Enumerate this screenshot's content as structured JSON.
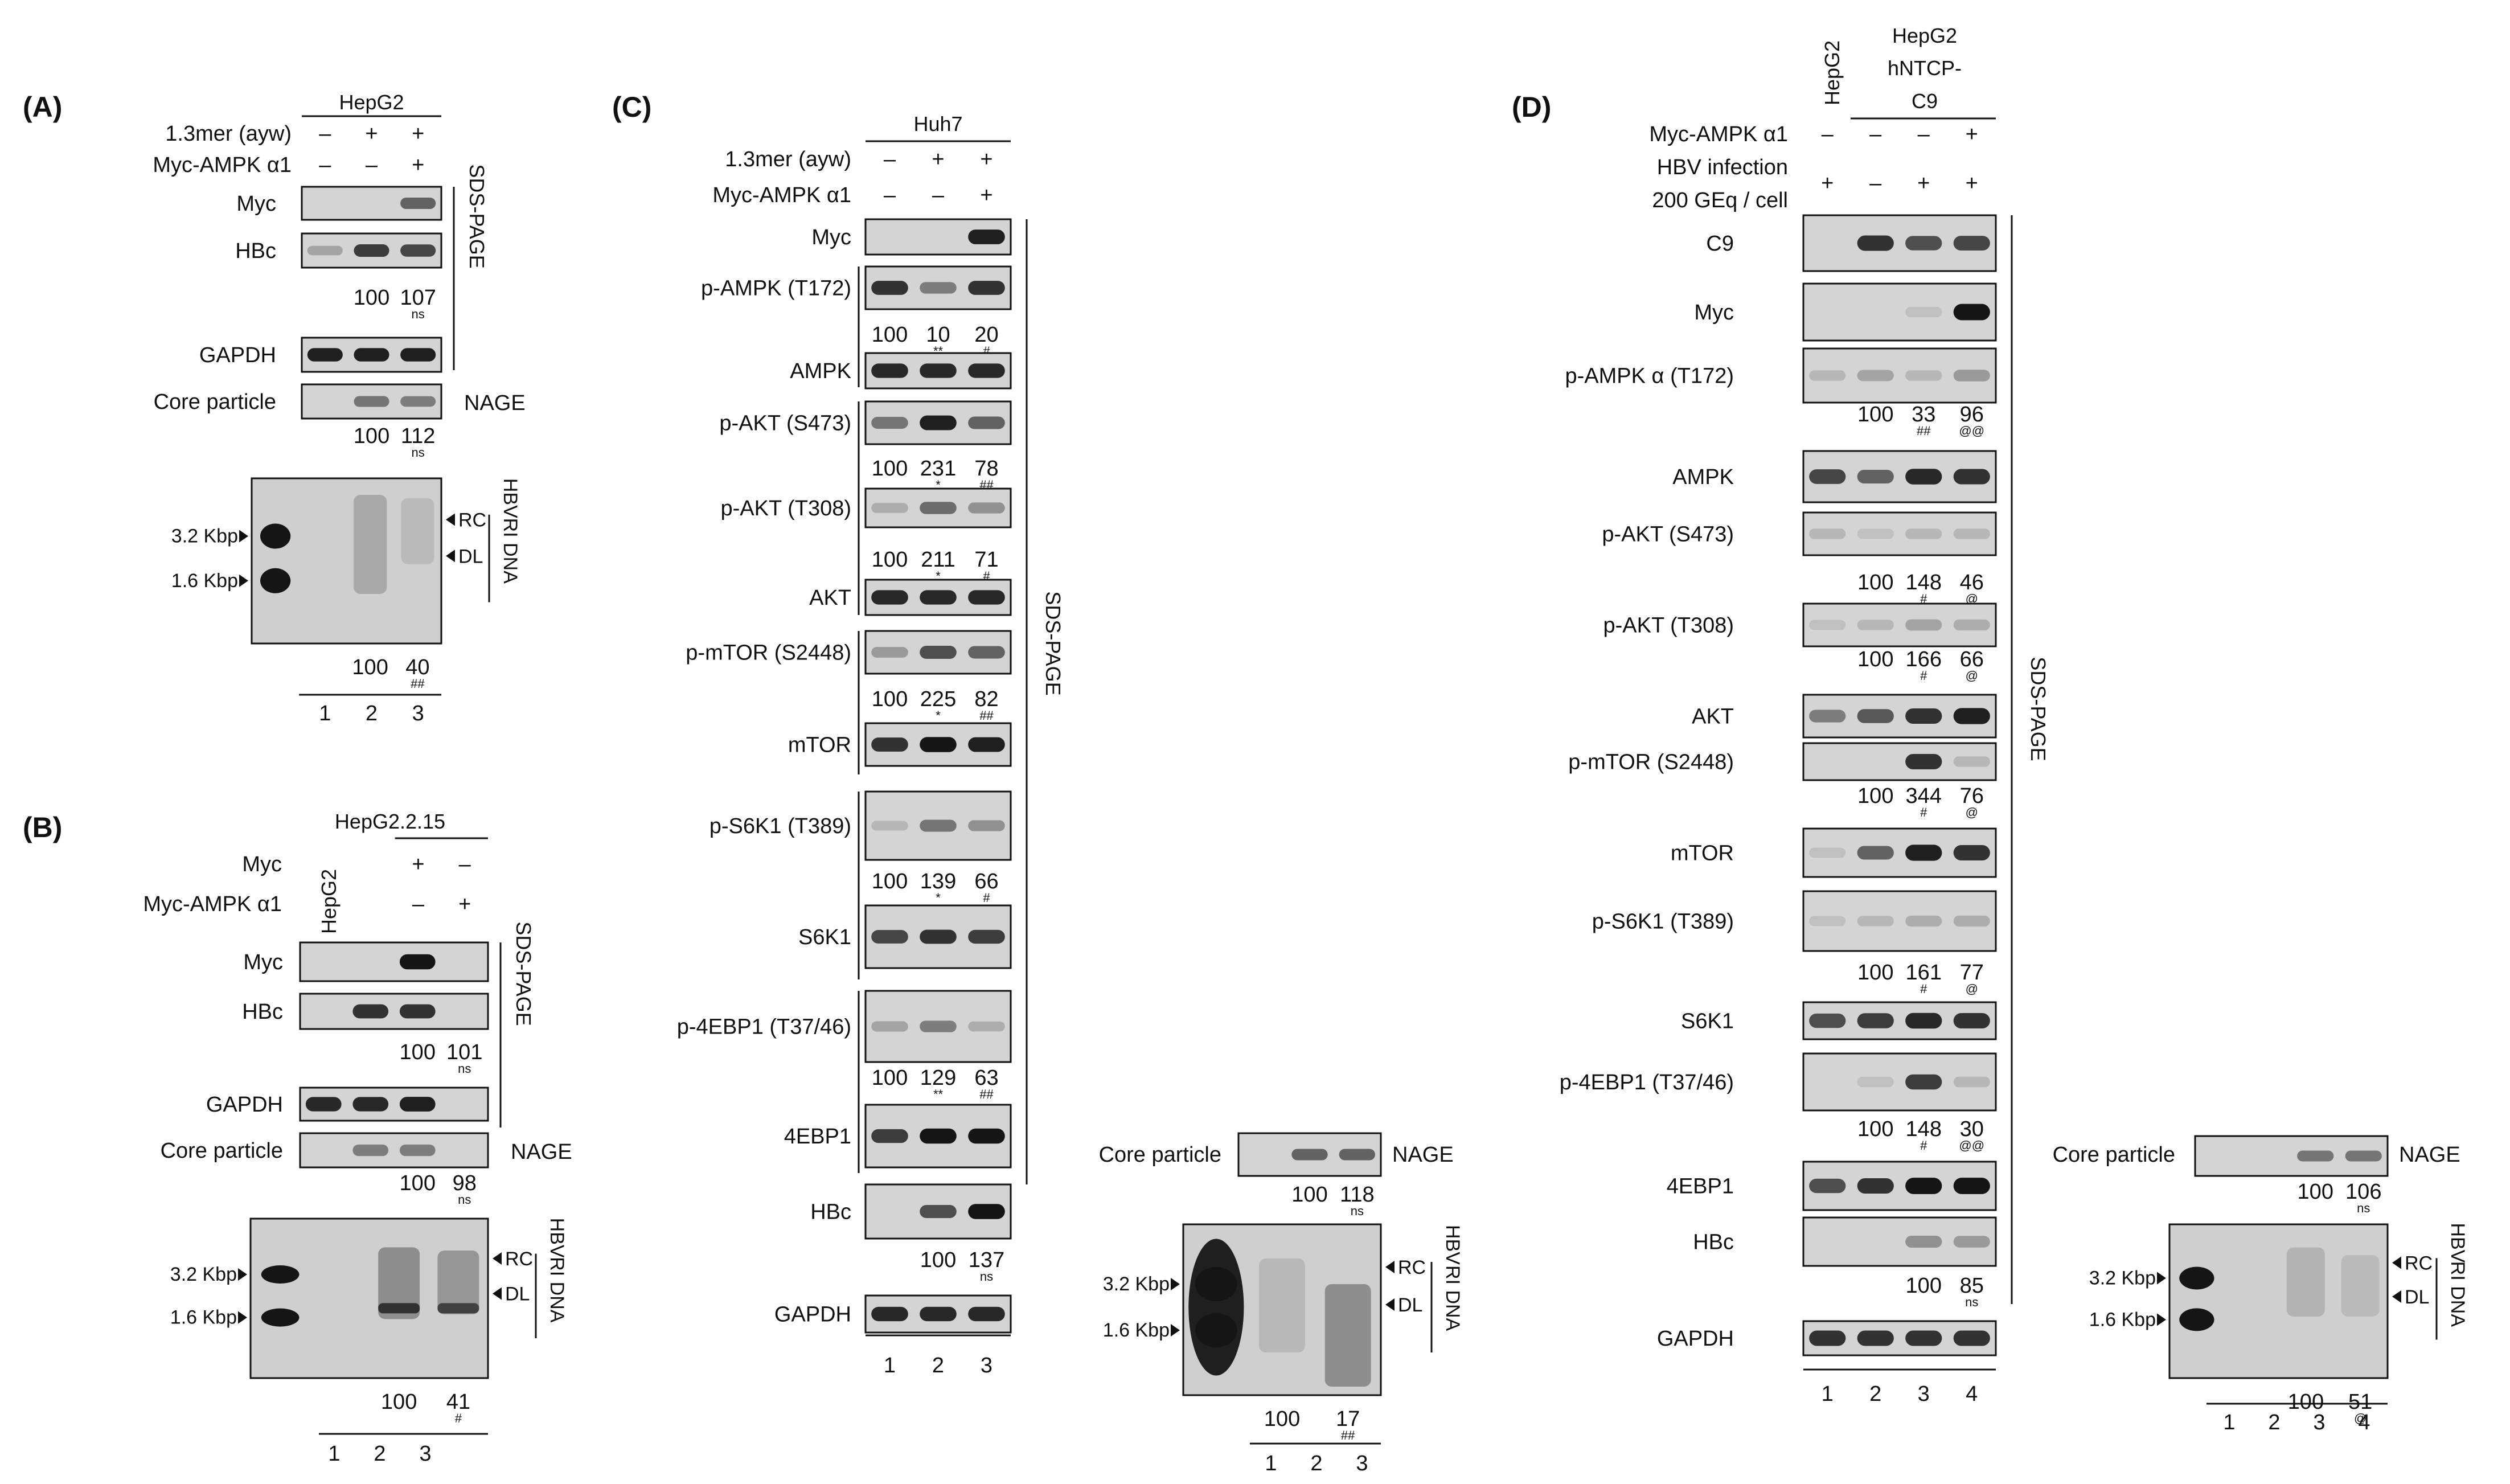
{
  "colors": {
    "background": "#ffffff",
    "blot_bg": "#d4d4d4",
    "band": "#151515",
    "ink": "#111111"
  },
  "panels": [
    {
      "id": "A",
      "letter": "(A)",
      "cell_line_label": "HepG2",
      "side_cell_label": "",
      "treatments": [
        {
          "label": "1.3mer (ayw)",
          "signs": [
            "–",
            "+",
            "+"
          ]
        },
        {
          "label": "Myc-AMPK α1",
          "signs": [
            "–",
            "–",
            "+"
          ]
        }
      ],
      "lane_numbers": [
        "1",
        "2",
        "3"
      ],
      "blots": [
        {
          "label": "Myc",
          "intensity": [
            0,
            0,
            0.6
          ],
          "values": [],
          "marks": []
        },
        {
          "label": "HBc",
          "intensity": [
            0.25,
            0.8,
            0.75
          ],
          "values": [
            "",
            "100",
            "107"
          ],
          "marks": [
            "",
            "",
            "ns"
          ]
        },
        {
          "label": "GAPDH",
          "intensity": [
            0.95,
            0.95,
            0.95
          ],
          "values": [],
          "marks": []
        },
        {
          "label": "Core particle",
          "intensity": [
            0,
            0.5,
            0.45
          ],
          "values": [
            "",
            "100",
            "112"
          ],
          "marks": [
            "",
            "",
            "ns"
          ]
        }
      ],
      "method_labels": [
        "SDS-PAGE",
        "NAGE"
      ],
      "southern": {
        "size_markers": [
          "3.2 Kbp",
          "1.6 Kbp"
        ],
        "side_labels": [
          "RC",
          "DL"
        ],
        "title": [
          "HBV",
          "RI DNA"
        ],
        "values": [
          "",
          "100",
          "40"
        ],
        "marks": [
          "",
          "",
          "##"
        ]
      }
    },
    {
      "id": "B",
      "letter": "(B)",
      "cell_line_label": "HepG2.2.15",
      "side_cell_label": "HepG2",
      "treatments": [
        {
          "label": "Myc",
          "signs": [
            "",
            "+",
            "–"
          ]
        },
        {
          "label": "Myc-AMPK α1",
          "signs": [
            "",
            "–",
            "+"
          ]
        }
      ],
      "lane_numbers": [
        "1",
        "2",
        "3"
      ],
      "blots": [
        {
          "label": "Myc",
          "intensity": [
            0,
            0,
            1
          ],
          "values": [],
          "marks": []
        },
        {
          "label": "HBc",
          "intensity": [
            0,
            0.85,
            0.85
          ],
          "values": [
            "",
            "100",
            "101"
          ],
          "marks": [
            "",
            "",
            "ns"
          ]
        },
        {
          "label": "GAPDH",
          "intensity": [
            0.9,
            0.9,
            0.95
          ],
          "values": [],
          "marks": []
        },
        {
          "label": "Core particle",
          "intensity": [
            0,
            0.45,
            0.45
          ],
          "values": [
            "",
            "100",
            "98"
          ],
          "marks": [
            "",
            "",
            "ns"
          ]
        }
      ],
      "method_labels": [
        "SDS-PAGE",
        "NAGE"
      ],
      "southern": {
        "size_markers": [
          "3.2 Kbp",
          "1.6 Kbp"
        ],
        "side_labels": [
          "RC",
          "DL"
        ],
        "title": [
          "HBV",
          "RI DNA"
        ],
        "values": [
          "",
          "100",
          "41"
        ],
        "marks": [
          "",
          "",
          "#"
        ]
      }
    },
    {
      "id": "C",
      "letter": "(C)",
      "cell_line_label": "Huh7",
      "side_cell_label": "",
      "treatments": [
        {
          "label": "1.3mer (ayw)",
          "signs": [
            "–",
            "+",
            "+"
          ]
        },
        {
          "label": "Myc-AMPK α1",
          "signs": [
            "–",
            "–",
            "+"
          ]
        }
      ],
      "lane_numbers": [
        "1",
        "2",
        "3"
      ],
      "blots": [
        {
          "label": "Myc",
          "intensity": [
            0,
            0,
            0.95
          ],
          "values": [],
          "marks": []
        },
        {
          "label": "p-AMPK (T172)",
          "intensity": [
            0.85,
            0.45,
            0.85
          ],
          "values": [
            "100",
            "10",
            "20"
          ],
          "marks": [
            "",
            "**",
            "#"
          ]
        },
        {
          "label": "AMPK",
          "intensity": [
            0.9,
            0.9,
            0.9
          ],
          "values": [],
          "marks": []
        },
        {
          "label": "p-AKT (S473)",
          "intensity": [
            0.5,
            0.95,
            0.6
          ],
          "values": [
            "100",
            "231",
            "78"
          ],
          "marks": [
            "",
            "*",
            "##"
          ]
        },
        {
          "label": "p-AKT (T308)",
          "intensity": [
            0.2,
            0.55,
            0.35
          ],
          "values": [
            "100",
            "211",
            "71"
          ],
          "marks": [
            "",
            "*",
            "#"
          ]
        },
        {
          "label": "AKT",
          "intensity": [
            0.9,
            0.9,
            0.9
          ],
          "values": [],
          "marks": []
        },
        {
          "label": "p-mTOR (S2448)",
          "intensity": [
            0.3,
            0.7,
            0.6
          ],
          "values": [
            "100",
            "225",
            "82"
          ],
          "marks": [
            "",
            "*",
            "##"
          ]
        },
        {
          "label": "mTOR",
          "intensity": [
            0.85,
            1,
            0.95
          ],
          "values": [],
          "marks": []
        },
        {
          "label": "p-S6K1 (T389)",
          "intensity": [
            0.15,
            0.5,
            0.35
          ],
          "values": [
            "100",
            "139",
            "66"
          ],
          "marks": [
            "",
            "*",
            "#"
          ]
        },
        {
          "label": "S6K1",
          "intensity": [
            0.75,
            0.85,
            0.8
          ],
          "values": [],
          "marks": []
        },
        {
          "label": "p-4EBP1 (T37/46)",
          "intensity": [
            0.25,
            0.45,
            0.2
          ],
          "values": [
            "100",
            "129",
            "63"
          ],
          "marks": [
            "",
            "**",
            "##"
          ]
        },
        {
          "label": "4EBP1",
          "intensity": [
            0.8,
            1,
            1
          ],
          "values": [],
          "marks": []
        },
        {
          "label": "HBc",
          "intensity": [
            0,
            0.7,
            1
          ],
          "values": [
            "",
            "100",
            "137"
          ],
          "marks": [
            "",
            "",
            "ns"
          ]
        },
        {
          "label": "GAPDH",
          "intensity": [
            0.9,
            0.9,
            0.9
          ],
          "values": [],
          "marks": []
        }
      ],
      "method_labels": [
        "SDS-PAGE"
      ],
      "core": {
        "label": "Core particle",
        "method": "NAGE",
        "intensity": [
          0,
          0.6,
          0.6
        ],
        "values": [
          "",
          "100",
          "118"
        ],
        "marks": [
          "",
          "",
          "ns"
        ]
      },
      "southern": {
        "size_markers": [
          "3.2 Kbp",
          "1.6 Kbp"
        ],
        "side_labels": [
          "RC",
          "DL"
        ],
        "title": [
          "HBV",
          "RI DNA"
        ],
        "values": [
          "",
          "100",
          "17"
        ],
        "marks": [
          "",
          "",
          "##"
        ],
        "lane_numbers": [
          "1",
          "2",
          "3"
        ]
      }
    },
    {
      "id": "D",
      "letter": "(D)",
      "header_lines": [
        "HepG2",
        "hNTCP-",
        "C9"
      ],
      "side_cell_label": "HepG2",
      "treatments": [
        {
          "label": "Myc-AMPK α1",
          "signs": [
            "–",
            "–",
            "–",
            "+"
          ]
        },
        {
          "label": "HBV infection",
          "signs": []
        },
        {
          "label": "200 GEq / cell",
          "signs": [
            "+",
            "–",
            "+",
            "+"
          ]
        }
      ],
      "lane_numbers": [
        "1",
        "2",
        "3",
        "4"
      ],
      "blots": [
        {
          "label": "C9",
          "intensity": [
            0,
            0.85,
            0.7,
            0.75
          ],
          "values": [],
          "marks": []
        },
        {
          "label": "Myc",
          "intensity": [
            0,
            0,
            0.1,
            1
          ],
          "values": [],
          "marks": []
        },
        {
          "label": "p-AMPK α (T172)",
          "intensity": [
            0.15,
            0.25,
            0.15,
            0.3
          ],
          "values": [
            "",
            "100",
            "33",
            "96"
          ],
          "marks": [
            "",
            "",
            "##",
            "@@"
          ]
        },
        {
          "label": "AMPK",
          "intensity": [
            0.75,
            0.6,
            0.9,
            0.85
          ],
          "values": [],
          "marks": []
        },
        {
          "label": "p-AKT (S473)",
          "intensity": [
            0.15,
            0.1,
            0.15,
            0.15
          ],
          "values": [
            "",
            "100",
            "148",
            "46"
          ],
          "marks": [
            "",
            "",
            "#",
            "@"
          ]
        },
        {
          "label": "p-AKT (T308)",
          "intensity": [
            0.1,
            0.15,
            0.25,
            0.2
          ],
          "values": [
            "",
            "100",
            "166",
            "66"
          ],
          "marks": [
            "",
            "",
            "#",
            "@"
          ]
        },
        {
          "label": "AKT",
          "intensity": [
            0.45,
            0.65,
            0.85,
            0.95
          ],
          "values": [],
          "marks": []
        },
        {
          "label": "p-mTOR (S2448)",
          "intensity": [
            0,
            0,
            0.85,
            0.15
          ],
          "values": [
            "",
            "100",
            "344",
            "76"
          ],
          "marks": [
            "",
            "",
            "#",
            "@"
          ]
        },
        {
          "label": "mTOR",
          "intensity": [
            0.1,
            0.6,
            0.95,
            0.85
          ],
          "values": [],
          "marks": []
        },
        {
          "label": "p-S6K1 (T389)",
          "intensity": [
            0.1,
            0.15,
            0.2,
            0.2
          ],
          "values": [
            "",
            "100",
            "161",
            "77"
          ],
          "marks": [
            "",
            "",
            "#",
            "@"
          ]
        },
        {
          "label": "S6K1",
          "intensity": [
            0.7,
            0.8,
            0.9,
            0.85
          ],
          "values": [],
          "marks": []
        },
        {
          "label": "p-4EBP1 (T37/46)",
          "intensity": [
            0,
            0.1,
            0.8,
            0.15
          ],
          "values": [
            "",
            "100",
            "148",
            "30"
          ],
          "marks": [
            "",
            "",
            "#",
            "@@"
          ]
        },
        {
          "label": "4EBP1",
          "intensity": [
            0.7,
            0.85,
            1,
            1
          ],
          "values": [],
          "marks": []
        },
        {
          "label": "HBc",
          "intensity": [
            0,
            0,
            0.35,
            0.3
          ],
          "values": [
            "",
            "",
            "100",
            "85"
          ],
          "marks": [
            "",
            "",
            "",
            "ns"
          ]
        },
        {
          "label": "GAPDH",
          "intensity": [
            0.85,
            0.85,
            0.85,
            0.85
          ],
          "values": [],
          "marks": []
        }
      ],
      "method_labels": [
        "SDS-PAGE"
      ],
      "core": {
        "label": "Core particle",
        "method": "NAGE",
        "intensity": [
          0,
          0,
          0.5,
          0.5
        ],
        "values": [
          "",
          "",
          "100",
          "106"
        ],
        "marks": [
          "",
          "",
          "",
          "ns"
        ]
      },
      "southern": {
        "size_markers": [
          "3.2 Kbp",
          "1.6 Kbp"
        ],
        "side_labels": [
          "RC",
          "DL"
        ],
        "title": [
          "HBV",
          "RI DNA"
        ],
        "values": [
          "",
          "",
          "100",
          "51"
        ],
        "marks": [
          "",
          "",
          "",
          "@"
        ],
        "lane_numbers": [
          "1",
          "2",
          "3",
          "4"
        ]
      }
    }
  ]
}
